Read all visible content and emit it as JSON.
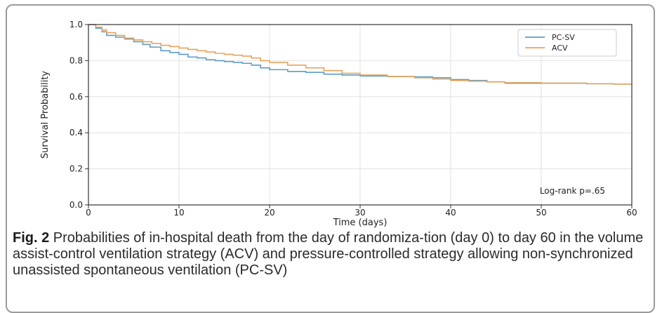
{
  "chart_data": {
    "type": "line",
    "title": "",
    "xlabel": "Time (days)",
    "ylabel": "Survival Probability",
    "xlim": [
      0,
      60
    ],
    "ylim": [
      0.0,
      1.0
    ],
    "xticks": [
      0,
      10,
      20,
      30,
      40,
      50,
      60
    ],
    "yticks": [
      0.0,
      0.2,
      0.4,
      0.6,
      0.8,
      1.0
    ],
    "xtick_labels": [
      "0",
      "10",
      "20",
      "30",
      "40",
      "50",
      "60"
    ],
    "ytick_labels": [
      "0.0",
      "0.2",
      "0.4",
      "0.6",
      "0.8",
      "1.0"
    ],
    "grid": true,
    "legend_position": "top-right",
    "annotation": "Log-rank p=.65",
    "series": [
      {
        "name": "PC-SV",
        "color": "#5b9bc8",
        "step": true,
        "x": [
          0,
          0.8,
          1.5,
          2,
          3,
          4,
          5,
          6,
          6.8,
          8,
          9,
          10,
          11,
          12,
          13,
          14,
          15,
          16,
          17,
          18,
          19,
          20,
          22,
          24,
          26,
          28,
          30,
          33,
          36,
          38,
          40,
          42,
          44,
          46,
          50,
          55,
          58,
          60
        ],
        "y": [
          1.0,
          0.98,
          0.96,
          0.94,
          0.93,
          0.92,
          0.905,
          0.89,
          0.875,
          0.855,
          0.845,
          0.835,
          0.82,
          0.815,
          0.805,
          0.8,
          0.795,
          0.79,
          0.785,
          0.775,
          0.76,
          0.75,
          0.74,
          0.735,
          0.725,
          0.72,
          0.715,
          0.712,
          0.71,
          0.705,
          0.695,
          0.69,
          0.682,
          0.675,
          0.675,
          0.672,
          0.67,
          0.67
        ]
      },
      {
        "name": "ACV",
        "color": "#e8a35a",
        "step": true,
        "x": [
          0,
          0.8,
          1.5,
          2,
          3,
          4,
          5,
          6,
          7,
          8,
          9,
          10,
          11,
          12,
          13,
          14,
          15,
          16,
          17,
          18,
          19,
          20,
          22,
          24,
          26,
          28,
          30,
          33,
          36,
          38,
          40,
          42,
          44,
          46,
          50,
          55,
          58,
          60
        ],
        "y": [
          1.0,
          0.985,
          0.97,
          0.955,
          0.94,
          0.925,
          0.915,
          0.905,
          0.895,
          0.885,
          0.878,
          0.87,
          0.862,
          0.855,
          0.848,
          0.84,
          0.835,
          0.83,
          0.825,
          0.815,
          0.8,
          0.79,
          0.775,
          0.76,
          0.745,
          0.73,
          0.72,
          0.712,
          0.705,
          0.698,
          0.69,
          0.686,
          0.682,
          0.678,
          0.675,
          0.672,
          0.67,
          0.67
        ]
      }
    ]
  },
  "caption": {
    "label": "Fig. 2",
    "text": " Probabilities of in-hospital death from the day of randomiza-tion (day 0) to day 60 in the volume assist-control ventilation strategy (ACV) and pressure-controlled strategy allowing non-synchronized unassisted spontaneous ventilation (PC-SV)"
  }
}
